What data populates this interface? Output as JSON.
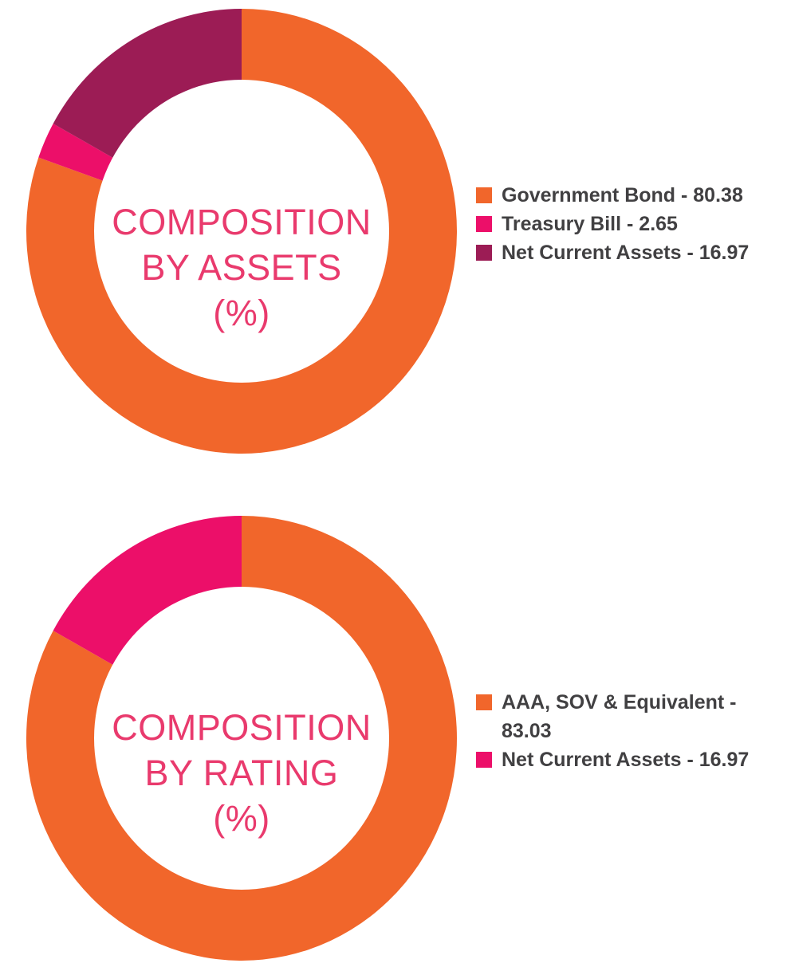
{
  "charts": [
    {
      "name": "composition-by-assets",
      "center_title_lines": [
        "COMPOSITION",
        "BY ASSETS",
        "(%)"
      ],
      "legend_items": [
        {
          "label": "Government Bond - 80.38",
          "color": "#F1662B"
        },
        {
          "label": "Treasury Bill - 2.65",
          "color": "#EC0F69"
        },
        {
          "label": "Net Current Assets - 16.97",
          "color": "#9C1C55"
        }
      ]
    },
    {
      "name": "composition-by-rating",
      "center_title_lines": [
        "COMPOSITION",
        "BY RATING",
        "(%)"
      ],
      "legend_items": [
        {
          "label": "AAA, SOV & Equivalent - 83.03",
          "color": "#F1662B"
        },
        {
          "label": "Net Current Assets - 16.97",
          "color": "#EC0F69"
        }
      ]
    }
  ],
  "chart_data": [
    {
      "type": "pie",
      "subtype": "donut",
      "title": "COMPOSITION BY ASSETS (%)",
      "labels": [
        "Government Bond",
        "Treasury Bill",
        "Net Current Assets"
      ],
      "values": [
        80.38,
        2.65,
        16.97
      ],
      "colors": [
        "#F1662B",
        "#EC0F69",
        "#9C1C55"
      ],
      "start_angle_deg": 0,
      "direction": "clockwise",
      "donut_hole_ratio": 0.68,
      "legend_position": "right",
      "center_label": "COMPOSITION BY ASSETS (%)"
    },
    {
      "type": "pie",
      "subtype": "donut",
      "title": "COMPOSITION BY RATING (%)",
      "labels": [
        "AAA, SOV & Equivalent",
        "Net Current Assets"
      ],
      "values": [
        83.03,
        16.97
      ],
      "colors": [
        "#F1662B",
        "#EC0F69"
      ],
      "start_angle_deg": 0,
      "direction": "clockwise",
      "donut_hole_ratio": 0.68,
      "legend_position": "right",
      "center_label": "COMPOSITION BY RATING (%)"
    }
  ],
  "colors": {
    "orange": "#F1662B",
    "pink": "#EC0F69",
    "maroon": "#9C1C55",
    "title_pink": "#E93A6D",
    "legend_text": "#414042",
    "background": "#FFFFFF",
    "hole": "#FFFFFF"
  }
}
